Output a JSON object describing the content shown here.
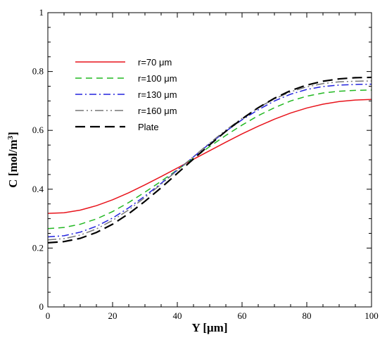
{
  "chart_data": {
    "type": "line",
    "title": "",
    "xlabel": "Y [μm]",
    "ylabel_main": "C [mol/m",
    "ylabel_sup": "3",
    "ylabel_close": "]",
    "xlim": [
      0,
      100
    ],
    "ylim": [
      0,
      1
    ],
    "xticks": [
      0,
      20,
      40,
      60,
      80,
      100
    ],
    "yticks": [
      0,
      0.2,
      0.4,
      0.6,
      0.8,
      1
    ],
    "ytick_labels": [
      "0",
      "0.2",
      "0.4",
      "0.6",
      "0.8",
      "1"
    ],
    "grid": false,
    "legend": "upper-left",
    "x": [
      0,
      5,
      10,
      15,
      20,
      25,
      30,
      35,
      40,
      45,
      50,
      55,
      60,
      65,
      70,
      75,
      80,
      85,
      90,
      95,
      100
    ],
    "series": [
      {
        "name": "r=70 μm",
        "color": "#e8141c",
        "dash": "solid",
        "values": [
          0.318,
          0.32,
          0.329,
          0.344,
          0.364,
          0.388,
          0.415,
          0.443,
          0.472,
          0.502,
          0.531,
          0.56,
          0.588,
          0.614,
          0.638,
          0.659,
          0.676,
          0.689,
          0.698,
          0.703,
          0.705
        ]
      },
      {
        "name": "r=100 μm",
        "color": "#22b822",
        "dash": "dashed",
        "values": [
          0.266,
          0.27,
          0.281,
          0.299,
          0.324,
          0.355,
          0.39,
          0.427,
          0.466,
          0.505,
          0.545,
          0.583,
          0.618,
          0.65,
          0.677,
          0.7,
          0.716,
          0.727,
          0.733,
          0.736,
          0.737
        ]
      },
      {
        "name": "r=130 μm",
        "color": "#2222dd",
        "dash": "dashdot",
        "values": [
          0.238,
          0.242,
          0.254,
          0.274,
          0.302,
          0.337,
          0.377,
          0.42,
          0.465,
          0.51,
          0.555,
          0.597,
          0.636,
          0.67,
          0.7,
          0.723,
          0.739,
          0.749,
          0.754,
          0.756,
          0.757
        ]
      },
      {
        "name": "r=160 μm",
        "color": "#777777",
        "dash": "dashdotdot",
        "values": [
          0.228,
          0.232,
          0.244,
          0.265,
          0.294,
          0.33,
          0.372,
          0.417,
          0.464,
          0.511,
          0.557,
          0.601,
          0.641,
          0.677,
          0.707,
          0.731,
          0.748,
          0.759,
          0.765,
          0.767,
          0.768
        ]
      },
      {
        "name": "Plate",
        "color": "#000000",
        "dash": "longdash",
        "values": [
          0.218,
          0.222,
          0.233,
          0.253,
          0.281,
          0.317,
          0.359,
          0.405,
          0.454,
          0.503,
          0.551,
          0.597,
          0.639,
          0.677,
          0.709,
          0.735,
          0.754,
          0.767,
          0.775,
          0.779,
          0.78
        ]
      }
    ]
  }
}
